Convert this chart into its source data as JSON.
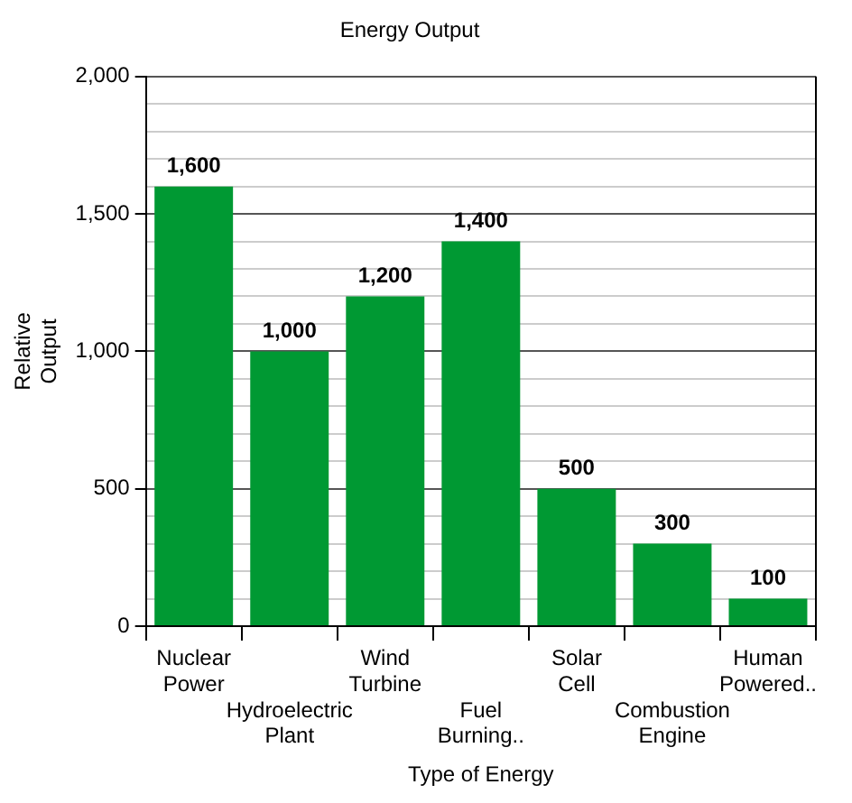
{
  "chart_data": {
    "type": "bar",
    "title": "Energy Output",
    "xlabel": "Type of Energy",
    "ylabel": "Relative Output",
    "categories": [
      "Nuclear Power",
      "Hydroelectric Plant",
      "Wind Turbine",
      "Fuel Burning..",
      "Solar Cell",
      "Combustion Engine",
      "Human Powered.."
    ],
    "values": [
      1600,
      1000,
      1200,
      1400,
      500,
      300,
      100
    ],
    "value_labels": [
      "1,600",
      "1,000",
      "1,200",
      "1,400",
      "500",
      "300",
      "100"
    ],
    "color": "#009933",
    "ylim": [
      0,
      2000
    ],
    "yticks": [
      {
        "value": 0,
        "label": "0"
      },
      {
        "value": 100,
        "label": null
      },
      {
        "value": 200,
        "label": null
      },
      {
        "value": 300,
        "label": null
      },
      {
        "value": 400,
        "label": null
      },
      {
        "value": 500,
        "label": "500"
      },
      {
        "value": 600,
        "label": null
      },
      {
        "value": 700,
        "label": null
      },
      {
        "value": 800,
        "label": null
      },
      {
        "value": 900,
        "label": null
      },
      {
        "value": 1000,
        "label": "1,000"
      },
      {
        "value": 1100,
        "label": null
      },
      {
        "value": 1200,
        "label": null
      },
      {
        "value": 1300,
        "label": null
      },
      {
        "value": 1400,
        "label": null
      },
      {
        "value": 1500,
        "label": "1,500"
      },
      {
        "value": 1600,
        "label": null
      },
      {
        "value": 1700,
        "label": null
      },
      {
        "value": 1800,
        "label": null
      },
      {
        "value": 1900,
        "label": null
      },
      {
        "value": 2000,
        "label": "2,000"
      }
    ],
    "grid": "y"
  }
}
